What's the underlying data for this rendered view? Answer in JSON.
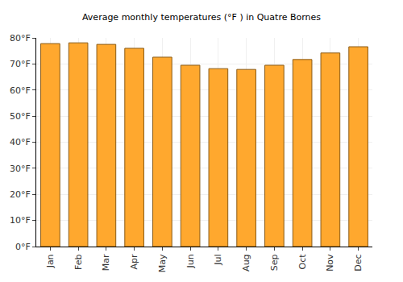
{
  "chart_data": {
    "type": "bar",
    "title": "Average monthly temperatures (°F ) in Quatre Bornes",
    "categories": [
      "Jan",
      "Feb",
      "Mar",
      "Apr",
      "May",
      "Jun",
      "Jul",
      "Aug",
      "Sep",
      "Oct",
      "Nov",
      "Dec"
    ],
    "values": [
      77.8,
      78.1,
      77.5,
      76.0,
      72.6,
      69.5,
      68.2,
      67.9,
      69.5,
      71.7,
      74.2,
      76.6
    ],
    "color": "#ffa82e",
    "ylim": [
      0,
      80
    ],
    "yticks": [
      {
        "value": 0,
        "label": "0°F"
      },
      {
        "value": 10,
        "label": "10°F"
      },
      {
        "value": 20,
        "label": "20°F"
      },
      {
        "value": 30,
        "label": "30°F"
      },
      {
        "value": 40,
        "label": "40°F"
      },
      {
        "value": 50,
        "label": "50°F"
      },
      {
        "value": 60,
        "label": "60°F"
      },
      {
        "value": 70,
        "label": "70°F"
      },
      {
        "value": 80,
        "label": "80°F"
      }
    ],
    "grid": true
  }
}
